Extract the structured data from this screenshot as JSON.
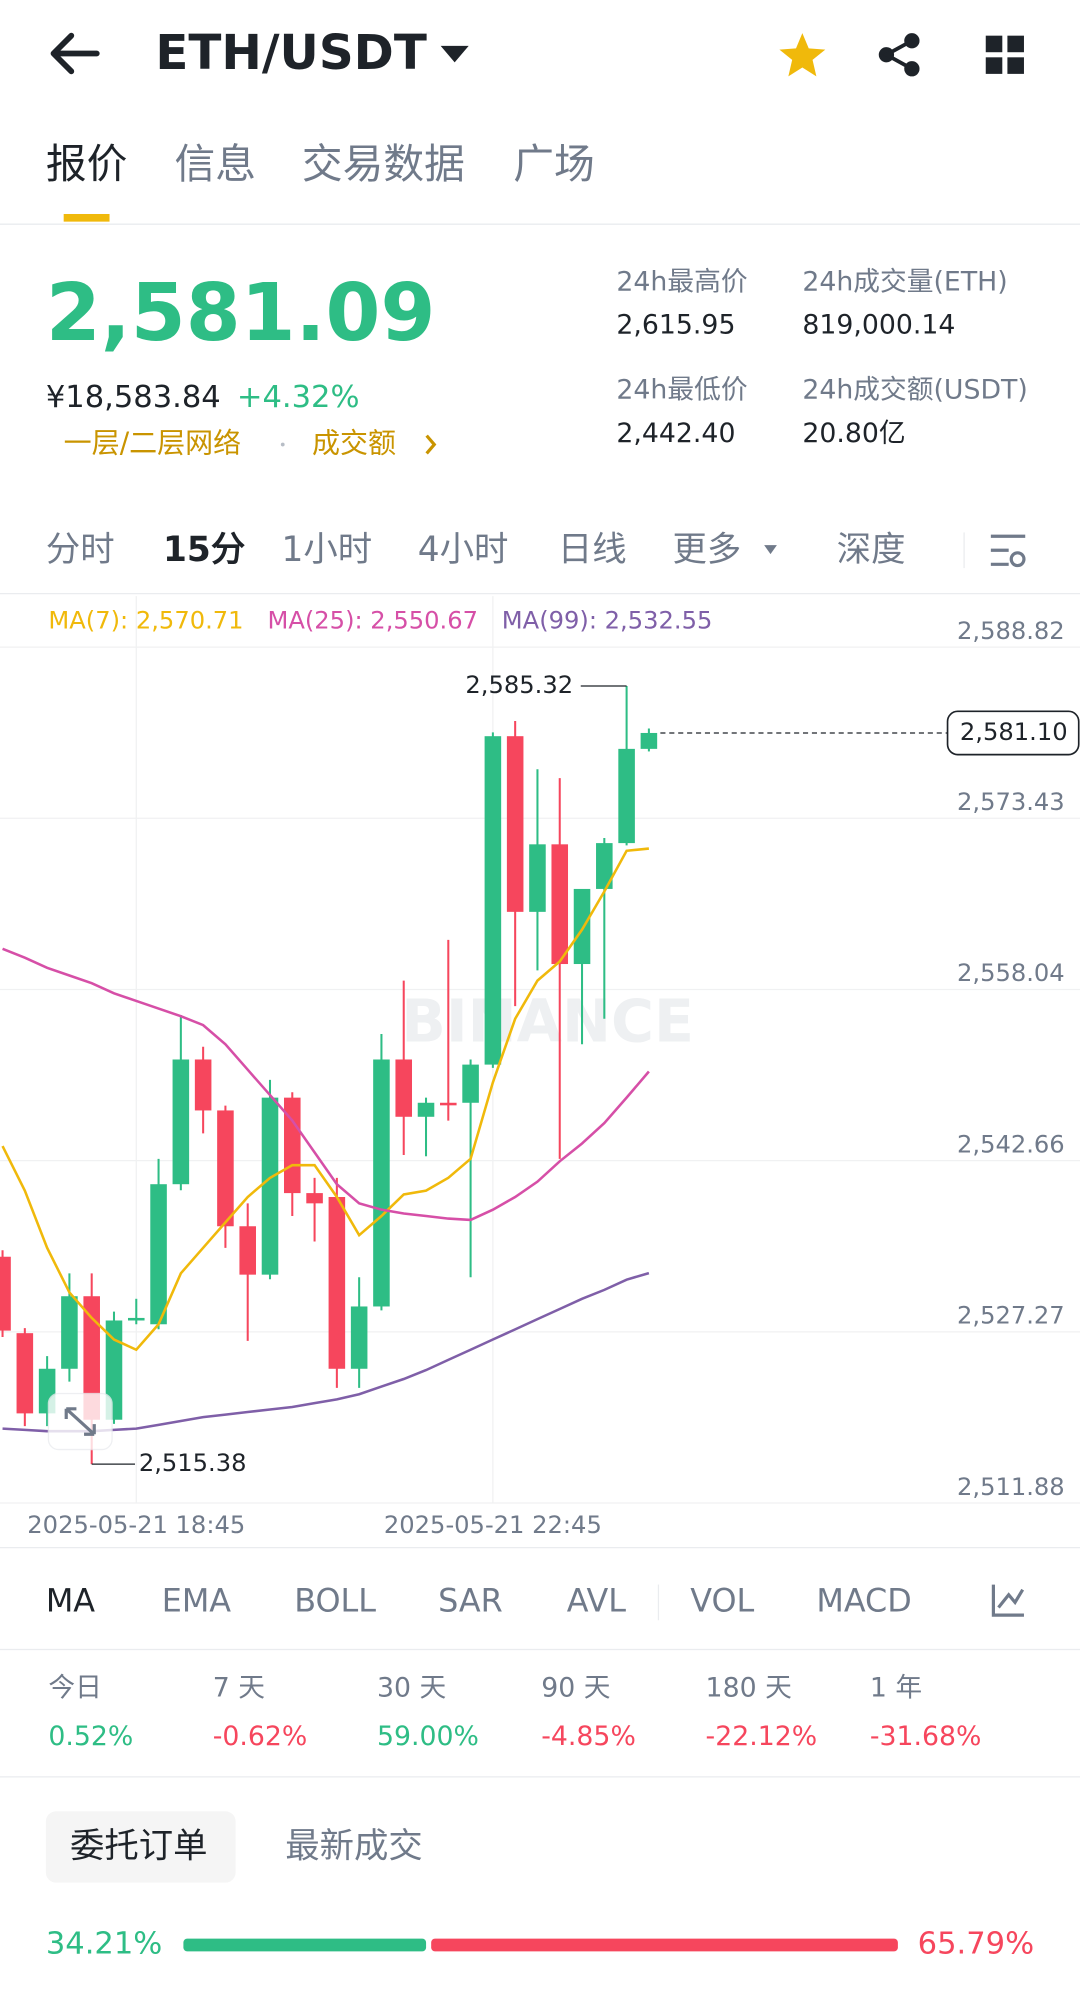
{
  "header": {
    "pair": "ETH/USDT"
  },
  "tabs": [
    "报价",
    "信息",
    "交易数据",
    "广场"
  ],
  "active_tab": 0,
  "ticker": {
    "price": "2,581.09",
    "cny": "¥18,583.84",
    "change": "+4.32%",
    "links": [
      "一层/二层网络",
      "成交额"
    ],
    "stats": [
      {
        "label": "24h最高价",
        "value": "2,615.95"
      },
      {
        "label": "24h成交量(ETH)",
        "value": "819,000.14"
      },
      {
        "label": "24h最低价",
        "value": "2,442.40"
      },
      {
        "label": "24h成交额(USDT)",
        "value": "20.80亿"
      }
    ]
  },
  "intervals": [
    "分时",
    "15分",
    "1小时",
    "4小时",
    "日线",
    "更多",
    "深度"
  ],
  "active_interval": 1,
  "chart_data": {
    "type": "candlestick",
    "watermark": "BINANCE",
    "categories": [
      null,
      null,
      null,
      null,
      null,
      null,
      "2025-05-21 18:45",
      null,
      null,
      null,
      null,
      null,
      null,
      null,
      null,
      null,
      null,
      null,
      null,
      null,
      null,
      null,
      "2025-05-21 22:45",
      null,
      null,
      null,
      null,
      null,
      null,
      null
    ],
    "open": [
      2534.02,
      2527.15,
      2519.94,
      2523.95,
      2530.47,
      2519.37,
      2528.29,
      2527.95,
      2540.54,
      2551.75,
      2547.17,
      2536.76,
      2532.41,
      2548.32,
      2539.74,
      2539.39,
      2523.95,
      2529.55,
      2551.75,
      2546.6,
      2547.86,
      2547.86,
      2551.29,
      2580.81,
      2565.02,
      2571.09,
      2560.33,
      2567.08,
      2571.2,
      2579.67
    ],
    "high": [
      2534.6,
      2527.6,
      2525.09,
      2532.53,
      2532.53,
      2529.09,
      2530.24,
      2542.82,
      2555.75,
      2552.89,
      2547.6,
      2538.82,
      2549.92,
      2548.8,
      2541.11,
      2541.11,
      2532.18,
      2554.04,
      2558.84,
      2548.32,
      2562.5,
      2551.75,
      2581.15,
      2582.18,
      2577.84,
      2577.04,
      2567.08,
      2571.66,
      2585.32,
      2581.5
    ],
    "low": [
      2526.8,
      2518.8,
      2518.8,
      2522.8,
      2515.38,
      2519.0,
      2527.95,
      2527.5,
      2540.0,
      2545.11,
      2534.82,
      2526.46,
      2532.0,
      2537.68,
      2535.39,
      2522.23,
      2522.23,
      2529.2,
      2543.17,
      2543.05,
      2546.26,
      2532.18,
      2551.0,
      2556.55,
      2559.76,
      2542.82,
      2553.12,
      2555.41,
      2571.0,
      2579.44
    ],
    "close": [
      2527.38,
      2519.94,
      2523.95,
      2530.47,
      2519.37,
      2528.29,
      2528.52,
      2540.54,
      2551.75,
      2547.17,
      2536.76,
      2532.41,
      2548.32,
      2539.74,
      2538.82,
      2523.95,
      2529.55,
      2551.75,
      2546.6,
      2547.86,
      2547.63,
      2551.29,
      2580.81,
      2565.02,
      2571.09,
      2560.33,
      2567.08,
      2571.2,
      2579.67,
      2581.1
    ],
    "up_color": "#2ebd85",
    "down_color": "#f6465d",
    "series": [
      {
        "name": "MA(7):",
        "color": "#f0b90b",
        "values": [
          2543.97,
          2539.96,
          2534.82,
          2530.81,
          2528.52,
          2526.58,
          2525.66,
          2527.95,
          2532.53,
          2534.82,
          2537.11,
          2539.39,
          2541.11,
          2542.25,
          2542.25,
          2539.39,
          2535.96,
          2537.68,
          2539.62,
          2539.96,
          2541.11,
          2542.82,
          2549.69,
          2555.41,
          2558.84,
          2560.56,
          2563.42,
          2566.85,
          2570.51,
          2570.71
        ],
        "value_labels": [
          null,
          null,
          null,
          null,
          null,
          null,
          null,
          null,
          null,
          null,
          null,
          null,
          null,
          null,
          null,
          null,
          null,
          null,
          null,
          null,
          null,
          null,
          null,
          null,
          null,
          null,
          null,
          null,
          null,
          "2,570.71"
        ]
      },
      {
        "name": "MA(25):",
        "color": "#d64fa7",
        "values": [
          2561.7,
          2560.9,
          2559.99,
          2559.3,
          2558.61,
          2557.7,
          2557.01,
          2556.33,
          2555.64,
          2554.84,
          2553.12,
          2550.83,
          2548.55,
          2546.26,
          2543.4,
          2540.54,
          2538.82,
          2538.25,
          2537.91,
          2537.68,
          2537.45,
          2537.33,
          2538.25,
          2539.39,
          2540.77,
          2542.6,
          2544.2,
          2546.03,
          2548.32,
          2550.67
        ],
        "value_labels": [
          null,
          null,
          null,
          null,
          null,
          null,
          null,
          null,
          null,
          null,
          null,
          null,
          null,
          null,
          null,
          null,
          null,
          null,
          null,
          null,
          null,
          null,
          null,
          null,
          null,
          null,
          null,
          null,
          null,
          "2,550.67"
        ]
      },
      {
        "name": "MA(99):",
        "color": "#7f5fa8",
        "values": [
          2518.57,
          2518.46,
          2518.34,
          2518.34,
          2518.34,
          2518.46,
          2518.57,
          2518.91,
          2519.26,
          2519.6,
          2519.83,
          2520.06,
          2520.29,
          2520.51,
          2520.86,
          2521.2,
          2521.66,
          2522.35,
          2523.03,
          2523.83,
          2524.75,
          2525.66,
          2526.58,
          2527.49,
          2528.41,
          2529.32,
          2530.24,
          2531.04,
          2531.96,
          2532.55
        ],
        "value_labels": [
          null,
          null,
          null,
          null,
          null,
          null,
          null,
          null,
          null,
          null,
          null,
          null,
          null,
          null,
          null,
          null,
          null,
          null,
          null,
          null,
          null,
          null,
          null,
          null,
          null,
          null,
          null,
          null,
          null,
          "2,532.55"
        ]
      }
    ],
    "ylim": [
      2511.88,
      2588.82
    ],
    "yticks": [
      {
        "value": 2588.82,
        "label": "2,588.82"
      },
      {
        "value": 2573.43,
        "label": "2,573.43"
      },
      {
        "value": 2558.04,
        "label": "2,558.04"
      },
      {
        "value": 2542.66,
        "label": "2,542.66"
      },
      {
        "value": 2527.27,
        "label": "2,527.27"
      },
      {
        "value": 2511.88,
        "label": "2,511.88"
      }
    ],
    "grid": true,
    "high_mark": {
      "value": 2585.32,
      "label": "2,585.32"
    },
    "low_mark": {
      "value": 2515.38,
      "label": "2,515.38"
    },
    "last_price": {
      "value": 2581.1,
      "label": "2,581.10"
    }
  },
  "indicators": [
    "MA",
    "EMA",
    "BOLL",
    "SAR",
    "AVL",
    "VOL",
    "MACD"
  ],
  "performance": [
    {
      "label": "今日",
      "value": "0.52%"
    },
    {
      "label": "7 天",
      "value": "-0.62%"
    },
    {
      "label": "30 天",
      "value": "59.00%"
    },
    {
      "label": "90 天",
      "value": "-4.85%"
    },
    {
      "label": "180 天",
      "value": "-22.12%"
    },
    {
      "label": "1 年",
      "value": "-31.68%"
    }
  ],
  "orders": {
    "tabs": [
      "委托订单",
      "最新成交"
    ],
    "buy": {
      "value": 34.21,
      "label": "34.21%"
    },
    "sell": {
      "value": 65.79,
      "label": "65.79%"
    }
  }
}
